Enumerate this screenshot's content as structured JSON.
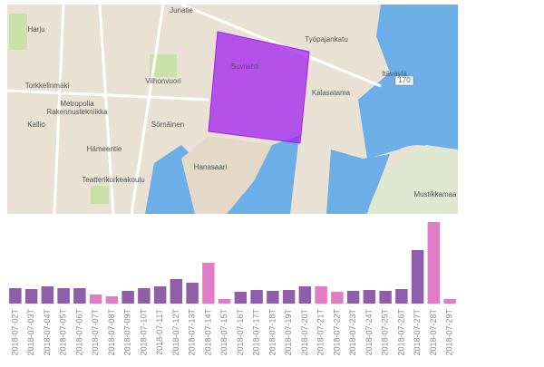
{
  "map": {
    "labels": [
      "Harju",
      "Torkkelinmäki",
      "Metropolia",
      "Rakennustekniikka",
      "Vilhonvuori",
      "Kallio",
      "Sörnäinen",
      "Hanasaari",
      "Kalasatama",
      "Mustikkamaa",
      "Suvilahti",
      "Työpajankatu",
      "Itäväylä",
      "170",
      "Hämeentie",
      "Teatterikorkeakoulu",
      "Junatie"
    ]
  },
  "chart_data": {
    "type": "bar",
    "categories": [
      "2018-07-02T",
      "2018-07-03T",
      "2018-07-04T",
      "2018-07-05T",
      "2018-07-06T",
      "2018-07-07T",
      "2018-07-08T",
      "2018-07-09T",
      "2018-07-10T",
      "2018-07-11T",
      "2018-07-12T",
      "2018-07-13T",
      "2018-07-14T",
      "2018-07-15T",
      "2018-07-16T",
      "2018-07-17T",
      "2018-07-18T",
      "2018-07-19T",
      "2018-07-20T",
      "2018-07-21T",
      "2018-07-22T",
      "2018-07-23T",
      "2018-07-24T",
      "2018-07-25T",
      "2018-07-26T",
      "2018-07-27T",
      "2018-07-28T",
      "2018-07-29T"
    ],
    "values": [
      17,
      16,
      19,
      17,
      17,
      10,
      8,
      14,
      17,
      19,
      27,
      23,
      45,
      5,
      13,
      15,
      14,
      15,
      19,
      19,
      13,
      14,
      15,
      14,
      16,
      59,
      90,
      5
    ],
    "colors": [
      "#8e5ea8",
      "#8e5ea8",
      "#8e5ea8",
      "#8e5ea8",
      "#8e5ea8",
      "#e07dc4",
      "#e07dc4",
      "#8e5ea8",
      "#8e5ea8",
      "#8e5ea8",
      "#8e5ea8",
      "#8e5ea8",
      "#e07dc4",
      "#e07dc4",
      "#8e5ea8",
      "#8e5ea8",
      "#8e5ea8",
      "#8e5ea8",
      "#8e5ea8",
      "#e07dc4",
      "#e07dc4",
      "#8e5ea8",
      "#8e5ea8",
      "#8e5ea8",
      "#8e5ea8",
      "#8e5ea8",
      "#e07dc4",
      "#e07dc4"
    ],
    "ylim": [
      0,
      100
    ]
  }
}
